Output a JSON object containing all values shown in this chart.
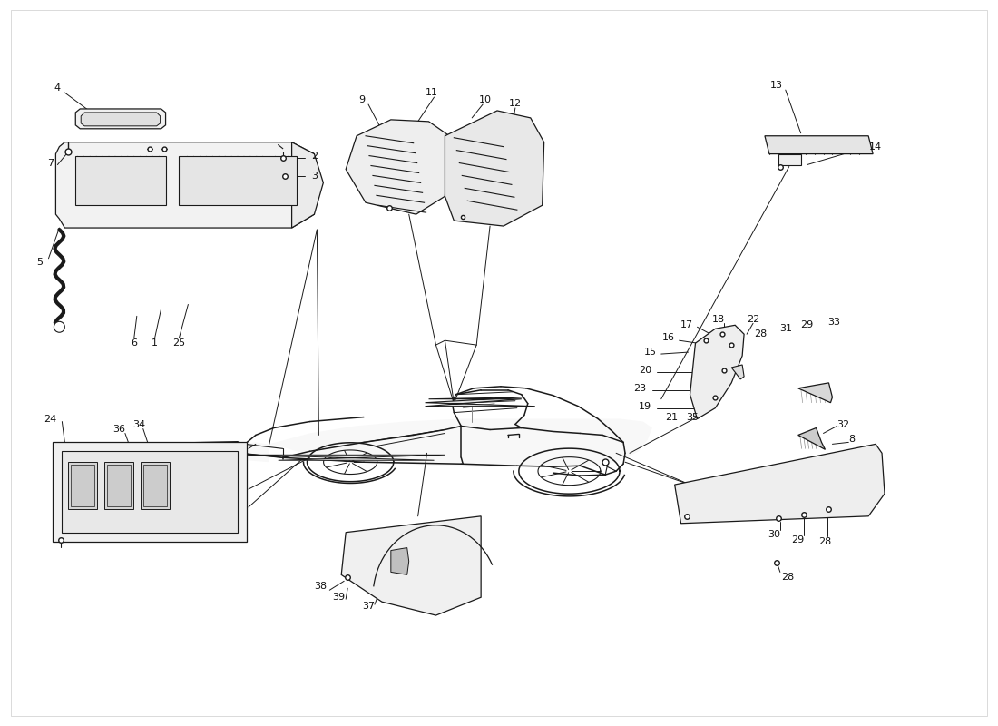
{
  "bg_color": "#ffffff",
  "line_color": "#1a1a1a",
  "text_color": "#111111",
  "fig_width": 11.0,
  "fig_height": 8.0,
  "dpi": 100,
  "label_fontsize": 8.0,
  "car_color": "#f5f5f5",
  "part_color": "#f0f0f0"
}
